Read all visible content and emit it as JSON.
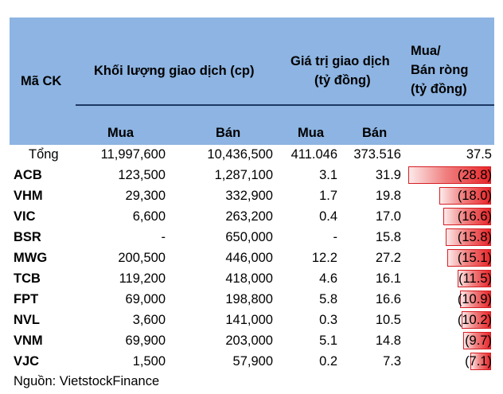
{
  "header": {
    "col_code": "Mã CK",
    "col_volume": "Khối lượng giao dịch (cp)",
    "col_value_line1": "Giá trị giao dịch",
    "col_value_line2": "(tỷ đồng)",
    "col_net_line1": "Mua/",
    "col_net_line2": "Bán ròng",
    "col_net_line3": "(tỷ đồng)",
    "sub_buy_vol": "Mua",
    "sub_sell_vol": "Bán",
    "sub_buy_val": "Mua",
    "sub_sell_val": "Bán"
  },
  "total": {
    "label": "Tổng",
    "buy_vol": "11,997,600",
    "sell_vol": "10,436,500",
    "buy_val": "411.046",
    "sell_val": "373.516",
    "net": "37.5"
  },
  "rows": [
    {
      "code": "ACB",
      "buy_vol": "123,500",
      "sell_vol": "1,287,100",
      "buy_val": "3.1",
      "sell_val": "31.9",
      "net": "(28.8)",
      "net_value": -28.8
    },
    {
      "code": "VHM",
      "buy_vol": "29,300",
      "sell_vol": "332,900",
      "buy_val": "1.7",
      "sell_val": "19.8",
      "net": "(18.0)",
      "net_value": -18.0
    },
    {
      "code": "VIC",
      "buy_vol": "6,600",
      "sell_vol": "263,200",
      "buy_val": "0.4",
      "sell_val": "17.0",
      "net": "(16.6)",
      "net_value": -16.6
    },
    {
      "code": "BSR",
      "buy_vol": "-",
      "sell_vol": "650,000",
      "buy_val": "-",
      "sell_val": "15.8",
      "net": "(15.8)",
      "net_value": -15.8
    },
    {
      "code": "MWG",
      "buy_vol": "200,500",
      "sell_vol": "446,000",
      "buy_val": "12.2",
      "sell_val": "27.2",
      "net": "(15.1)",
      "net_value": -15.1
    },
    {
      "code": "TCB",
      "buy_vol": "119,200",
      "sell_vol": "418,000",
      "buy_val": "4.6",
      "sell_val": "16.1",
      "net": "(11.5)",
      "net_value": -11.5
    },
    {
      "code": "FPT",
      "buy_vol": "69,000",
      "sell_vol": "198,800",
      "buy_val": "5.8",
      "sell_val": "16.6",
      "net": "(10.9)",
      "net_value": -10.9
    },
    {
      "code": "NVL",
      "buy_vol": "3,600",
      "sell_vol": "141,000",
      "buy_val": "0.3",
      "sell_val": "10.5",
      "net": "(10.2)",
      "net_value": -10.2
    },
    {
      "code": "VNM",
      "buy_vol": "69,900",
      "sell_vol": "203,000",
      "buy_val": "5.1",
      "sell_val": "14.8",
      "net": "(9.7)",
      "net_value": -9.7
    },
    {
      "code": "VJC",
      "buy_vol": "1,500",
      "sell_vol": "57,900",
      "buy_val": "0.2",
      "sell_val": "7.3",
      "net": "(7.1)",
      "net_value": -7.1
    }
  ],
  "source": "Nguồn: VietstockFinance",
  "colors": {
    "header_bg": "#8db4e2",
    "bar_red": "#e8262a"
  }
}
